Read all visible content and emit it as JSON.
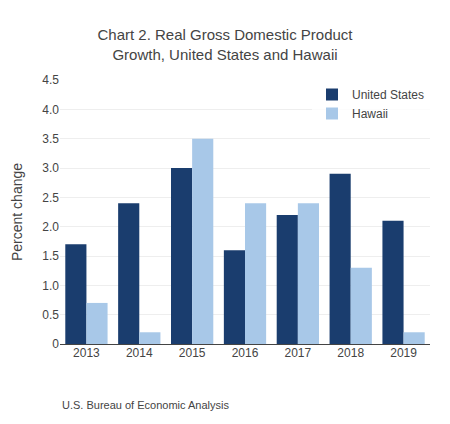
{
  "chart_data": {
    "type": "bar",
    "title": "Chart 2. Real Gross Domestic Product\nGrowth, United States and Hawaii",
    "ylabel": "Percent change",
    "annotations": [
      "U.S. Bureau of Economic Analysis"
    ],
    "categories": [
      "2013",
      "2014",
      "2015",
      "2016",
      "2017",
      "2018",
      "2019"
    ],
    "series": [
      {
        "name": "United States",
        "color": "#1a3d6e",
        "values": [
          1.7,
          2.4,
          3.0,
          1.6,
          2.2,
          2.9,
          2.1
        ]
      },
      {
        "name": "Hawaii",
        "color": "#a8c8e8",
        "values": [
          0.7,
          0.2,
          3.5,
          2.4,
          2.4,
          1.3,
          0.2
        ]
      }
    ],
    "ylim": [
      0,
      4.5
    ],
    "yticks": [
      0,
      0.5,
      {
        "value": 1.0,
        "label": "1.0"
      },
      1.5,
      {
        "value": 2.0,
        "label": "2.0"
      },
      2.5,
      {
        "value": 3.0,
        "label": "3.0"
      },
      3.5,
      {
        "value": 4.0,
        "label": "4.0"
      },
      4.5
    ],
    "grid": true,
    "legend": "upper right"
  }
}
